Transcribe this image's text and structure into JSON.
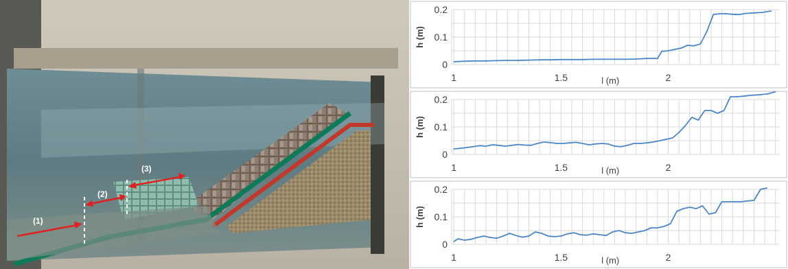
{
  "photo": {
    "annotations": [
      "(1)",
      "(2)",
      "(3)"
    ]
  },
  "colors": {
    "line": "#4a86c8",
    "grid": "#d9d9d9",
    "panel_border": "#bfbfbf",
    "text": "#404040",
    "arrow": "#e02020",
    "toe_green": "#0f7a5a"
  },
  "chart_data": [
    {
      "type": "line",
      "xlabel": "l (m)",
      "ylabel": "h (m)",
      "xlim": [
        0.99,
        2.52
      ],
      "ylim": [
        0,
        0.2
      ],
      "x_ticks": [
        1,
        1.5,
        2
      ],
      "x_tick_labels": [
        "1",
        "1.5",
        "2"
      ],
      "y_ticks": [
        0,
        0.1,
        0.2
      ],
      "y_tick_labels": [
        "0",
        "0.1",
        "0.2"
      ],
      "grid": true,
      "series": [
        {
          "x": [
            1.0,
            1.05,
            1.1,
            1.15,
            1.2,
            1.25,
            1.3,
            1.35,
            1.4,
            1.45,
            1.5,
            1.55,
            1.6,
            1.65,
            1.7,
            1.75,
            1.8,
            1.85,
            1.9,
            1.95,
            1.97,
            2.0,
            2.03,
            2.06,
            2.09,
            2.12,
            2.15,
            2.18,
            2.21,
            2.24,
            2.27,
            2.3,
            2.33,
            2.36,
            2.4,
            2.44,
            2.48
          ],
          "values": [
            0.01,
            0.012,
            0.013,
            0.013,
            0.014,
            0.015,
            0.015,
            0.016,
            0.017,
            0.017,
            0.018,
            0.018,
            0.018,
            0.019,
            0.019,
            0.019,
            0.019,
            0.02,
            0.022,
            0.022,
            0.048,
            0.05,
            0.055,
            0.06,
            0.07,
            0.068,
            0.075,
            0.12,
            0.182,
            0.185,
            0.185,
            0.183,
            0.182,
            0.186,
            0.188,
            0.19,
            0.195
          ]
        }
      ]
    },
    {
      "type": "line",
      "xlabel": "l (m)",
      "ylabel": "h (m)",
      "xlim": [
        0.99,
        2.52
      ],
      "ylim": [
        0,
        0.2
      ],
      "x_ticks": [
        1,
        1.5,
        2
      ],
      "x_tick_labels": [
        "1",
        "1.5",
        "2"
      ],
      "y_ticks": [
        0,
        0.1,
        0.2
      ],
      "y_tick_labels": [
        "0",
        "0.1",
        "0.2"
      ],
      "grid": true,
      "series": [
        {
          "x": [
            1.0,
            1.03,
            1.06,
            1.09,
            1.12,
            1.15,
            1.18,
            1.21,
            1.24,
            1.27,
            1.3,
            1.33,
            1.36,
            1.39,
            1.42,
            1.45,
            1.48,
            1.51,
            1.54,
            1.57,
            1.6,
            1.63,
            1.66,
            1.69,
            1.72,
            1.75,
            1.78,
            1.81,
            1.84,
            1.87,
            1.9,
            1.93,
            1.96,
            1.99,
            2.02,
            2.05,
            2.08,
            2.11,
            2.14,
            2.17,
            2.2,
            2.23,
            2.26,
            2.29,
            2.32,
            2.35,
            2.38,
            2.42,
            2.46,
            2.5
          ],
          "values": [
            0.02,
            0.022,
            0.025,
            0.028,
            0.032,
            0.03,
            0.035,
            0.033,
            0.03,
            0.033,
            0.036,
            0.034,
            0.033,
            0.04,
            0.045,
            0.043,
            0.04,
            0.04,
            0.042,
            0.044,
            0.04,
            0.035,
            0.038,
            0.04,
            0.038,
            0.03,
            0.028,
            0.033,
            0.04,
            0.04,
            0.042,
            0.045,
            0.05,
            0.055,
            0.06,
            0.08,
            0.105,
            0.135,
            0.125,
            0.16,
            0.16,
            0.15,
            0.16,
            0.21,
            0.21,
            0.212,
            0.215,
            0.217,
            0.22,
            0.228
          ]
        }
      ]
    },
    {
      "type": "line",
      "xlabel": "l (m)",
      "ylabel": "h (m)",
      "xlim": [
        0.99,
        2.52
      ],
      "ylim": [
        0,
        0.2
      ],
      "x_ticks": [
        1,
        1.5,
        2
      ],
      "x_tick_labels": [
        "1",
        "1.5",
        "2"
      ],
      "y_ticks": [
        0,
        0.1,
        0.2
      ],
      "y_tick_labels": [
        "0",
        "0.1",
        "0.2"
      ],
      "grid": true,
      "series": [
        {
          "x": [
            1.0,
            1.02,
            1.05,
            1.08,
            1.11,
            1.14,
            1.17,
            1.2,
            1.23,
            1.26,
            1.29,
            1.32,
            1.35,
            1.38,
            1.41,
            1.44,
            1.47,
            1.5,
            1.53,
            1.56,
            1.59,
            1.62,
            1.65,
            1.68,
            1.71,
            1.74,
            1.77,
            1.8,
            1.83,
            1.86,
            1.89,
            1.92,
            1.95,
            1.98,
            2.01,
            2.04,
            2.07,
            2.1,
            2.13,
            2.16,
            2.19,
            2.22,
            2.25,
            2.28,
            2.31,
            2.34,
            2.37,
            2.4,
            2.43,
            2.46
          ],
          "values": [
            0.01,
            0.02,
            0.015,
            0.018,
            0.025,
            0.03,
            0.025,
            0.022,
            0.03,
            0.04,
            0.032,
            0.026,
            0.03,
            0.045,
            0.04,
            0.03,
            0.028,
            0.03,
            0.038,
            0.042,
            0.035,
            0.033,
            0.038,
            0.035,
            0.032,
            0.045,
            0.05,
            0.042,
            0.04,
            0.045,
            0.05,
            0.06,
            0.06,
            0.065,
            0.075,
            0.12,
            0.13,
            0.135,
            0.13,
            0.14,
            0.11,
            0.115,
            0.155,
            0.155,
            0.155,
            0.155,
            0.158,
            0.16,
            0.2,
            0.205
          ]
        }
      ]
    }
  ]
}
